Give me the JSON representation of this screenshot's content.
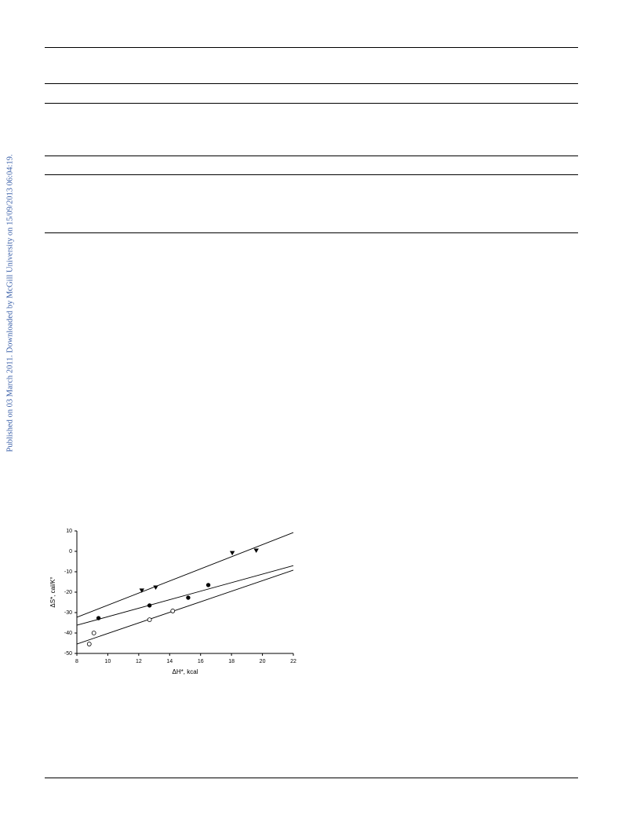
{
  "sidebar": "Published on 03 March 2011. Downloaded by McGill University on 15/09/2013 06:04:19.",
  "chart_data": {
    "type": "scatter",
    "xlabel": "ΔH*, kcal",
    "ylabel": "ΔS*, cal/K°",
    "xlim": [
      8,
      22
    ],
    "ylim": [
      -50,
      10
    ],
    "xticks": [
      8,
      10,
      12,
      14,
      16,
      18,
      20,
      22
    ],
    "yticks": [
      -50,
      -40,
      -30,
      -20,
      -10,
      0,
      10
    ],
    "fit_x": [
      8,
      22
    ],
    "series": [
      {
        "marker": "triangle-down",
        "color": "#000000",
        "x": [
          12.2,
          13.1,
          18.05,
          19.6
        ],
        "values": [
          -19.2,
          -17.7,
          -0.8,
          0.4
        ],
        "fit_values": [
          -32.3,
          9.2
        ]
      },
      {
        "marker": "circle",
        "color": "#000000",
        "x": [
          9.4,
          12.7,
          15.2,
          16.5
        ],
        "values": [
          -32.7,
          -26.5,
          -22.7,
          -16.5
        ],
        "fit_values": [
          -36.2,
          -7
        ]
      },
      {
        "marker": "circle-open",
        "color": "#000000",
        "x": [
          8.8,
          9.1,
          12.7,
          14.2
        ],
        "values": [
          -45.4,
          -40,
          -33.5,
          -29.2
        ],
        "fit_values": [
          -45.4,
          -9.2
        ]
      }
    ]
  }
}
